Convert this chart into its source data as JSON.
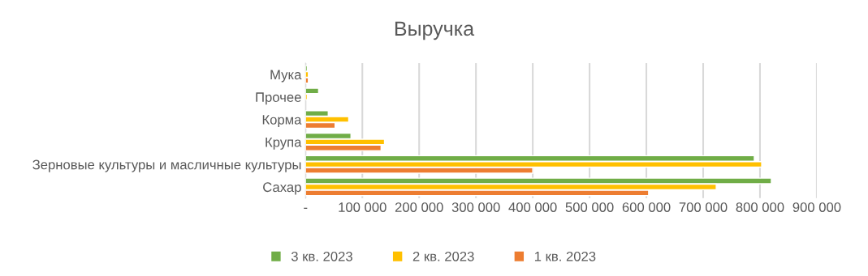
{
  "chart_data": {
    "type": "bar",
    "orientation": "horizontal",
    "title": "Выручка",
    "categories": [
      "Мука",
      "Прочее",
      "Корма",
      "Крупа",
      "Зерновые культуры и масличные культуры",
      "Сахар"
    ],
    "series": [
      {
        "name": "3 кв. 2023",
        "color": "#70ad47",
        "values": [
          3000,
          23000,
          40000,
          80000,
          790000,
          820000
        ]
      },
      {
        "name": "2 кв. 2023",
        "color": "#ffc000",
        "values": [
          5000,
          3000,
          76000,
          139000,
          803000,
          723000
        ]
      },
      {
        "name": "1 кв. 2023",
        "color": "#ed7d31",
        "values": [
          5000,
          null,
          52000,
          133000,
          400000,
          604000
        ]
      }
    ],
    "xlim": [
      0,
      900000
    ],
    "xticks": [
      {
        "value": 0,
        "label": "-"
      },
      {
        "value": 100000,
        "label": "100 000"
      },
      {
        "value": 200000,
        "label": "200 000"
      },
      {
        "value": 300000,
        "label": "300 000"
      },
      {
        "value": 400000,
        "label": "400 000"
      },
      {
        "value": 500000,
        "label": "500 000"
      },
      {
        "value": 600000,
        "label": "600 000"
      },
      {
        "value": 700000,
        "label": "700 000"
      },
      {
        "value": 800000,
        "label": "800 000"
      },
      {
        "value": 900000,
        "label": "900 000"
      }
    ],
    "grid": "x",
    "legend": "bottom"
  }
}
